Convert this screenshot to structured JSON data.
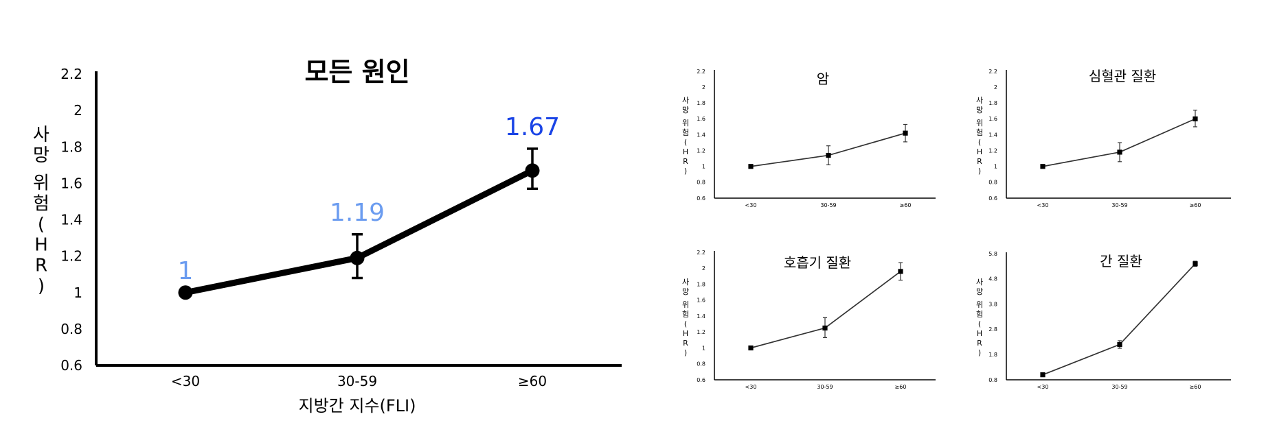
{
  "chart_data": [
    {
      "type": "line",
      "title": "모든 원인",
      "xlabel": "지방간 지수(FLI)",
      "ylabel": "사망 위험(HR)",
      "categories": [
        "<30",
        "30-59",
        "≥60"
      ],
      "values": [
        1,
        1.19,
        1.67
      ],
      "error_low": [
        1,
        1.08,
        1.57
      ],
      "error_high": [
        1,
        1.32,
        1.79
      ],
      "data_labels": [
        "1",
        "1.19",
        "1.67"
      ],
      "label_colors": [
        "#6b9cf0",
        "#6b9cf0",
        "#1a44e6"
      ],
      "ylim": [
        0.6,
        2.2
      ],
      "yticks": [
        0.6,
        0.8,
        1,
        1.2,
        1.4,
        1.6,
        1.8,
        2,
        2.2
      ],
      "ytick_labels": [
        "0.6",
        "0.8",
        "1",
        "1.2",
        "1.4",
        "1.6",
        "1.8",
        "2",
        "2.2"
      ]
    },
    {
      "type": "line",
      "title": "암",
      "ylabel": "사망 위험(HR)",
      "categories": [
        "<30",
        "30-59",
        "≥60"
      ],
      "values": [
        1,
        1.14,
        1.42
      ],
      "error_low": [
        1,
        1.02,
        1.31
      ],
      "error_high": [
        1,
        1.26,
        1.53
      ],
      "ylim": [
        0.6,
        2.2
      ],
      "yticks": [
        0.6,
        0.8,
        1,
        1.2,
        1.4,
        1.6,
        1.8,
        2,
        2.2
      ],
      "ytick_labels": [
        "0.6",
        "0.8",
        "1",
        "1.2",
        "1.4",
        "1.6",
        "1.8",
        "2",
        "2.2"
      ]
    },
    {
      "type": "line",
      "title": "심혈관 질환",
      "ylabel": "사망 위험(HR)",
      "categories": [
        "<30",
        "30-59",
        "≥60"
      ],
      "values": [
        1,
        1.18,
        1.6
      ],
      "error_low": [
        1,
        1.06,
        1.5
      ],
      "error_high": [
        1,
        1.3,
        1.71
      ],
      "ylim": [
        0.6,
        2.2
      ],
      "yticks": [
        0.6,
        0.8,
        1,
        1.2,
        1.4,
        1.6,
        1.8,
        2,
        2.2
      ],
      "ytick_labels": [
        "0.6",
        "0.8",
        "1",
        "1.2",
        "1.4",
        "1.6",
        "1.8",
        "2",
        "2.2"
      ]
    },
    {
      "type": "line",
      "title": "호흡기 질환",
      "ylabel": "사망 위험(HR)",
      "categories": [
        "<30",
        "30-59",
        "≥60"
      ],
      "values": [
        1,
        1.25,
        1.96
      ],
      "error_low": [
        1,
        1.13,
        1.85
      ],
      "error_high": [
        1,
        1.38,
        2.07
      ],
      "ylim": [
        0.6,
        2.2
      ],
      "yticks": [
        0.6,
        0.8,
        1,
        1.2,
        1.4,
        1.6,
        1.8,
        2,
        2.2
      ],
      "ytick_labels": [
        "0.6",
        "0.8",
        "1",
        "1.2",
        "1.4",
        "1.6",
        "1.8",
        "2",
        "2.2"
      ]
    },
    {
      "type": "line",
      "title": "간 질환",
      "ylabel": "사망 위험(HR)",
      "categories": [
        "<30",
        "30-59",
        "≥60"
      ],
      "values": [
        1,
        2.2,
        5.4
      ],
      "error_low": [
        1,
        2.05,
        5.3
      ],
      "error_high": [
        1,
        2.35,
        5.5
      ],
      "ylim": [
        0.8,
        5.8
      ],
      "yticks": [
        0.8,
        1.8,
        2.8,
        3.8,
        4.8,
        5.8
      ],
      "ytick_labels": [
        "0.8",
        "1.8",
        "2.8",
        "3.8",
        "4.8",
        "5.8"
      ]
    }
  ]
}
